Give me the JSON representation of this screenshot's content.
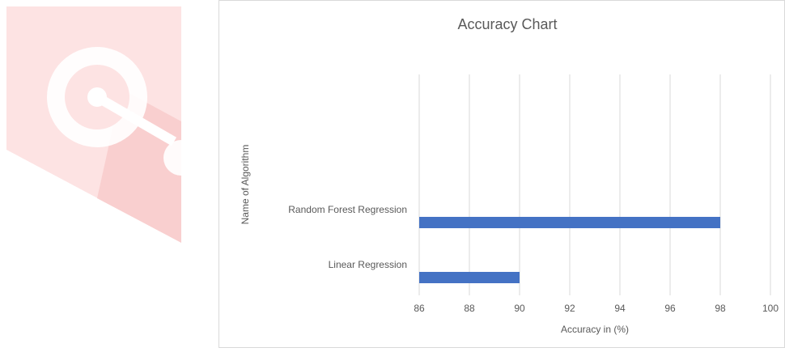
{
  "chart_data": {
    "type": "bar",
    "orientation": "horizontal",
    "title": "Accuracy Chart",
    "x_label": "Accuracy in (%)",
    "y_label": "Name of Algorithm",
    "categories": [
      "Linear Regression",
      "Random Forest Regression"
    ],
    "values": [
      90,
      98
    ],
    "color": "#4472c4",
    "xlim": [
      86,
      100
    ],
    "xticks": [
      86,
      88,
      90,
      92,
      94,
      96,
      98,
      100
    ],
    "grid": true
  }
}
